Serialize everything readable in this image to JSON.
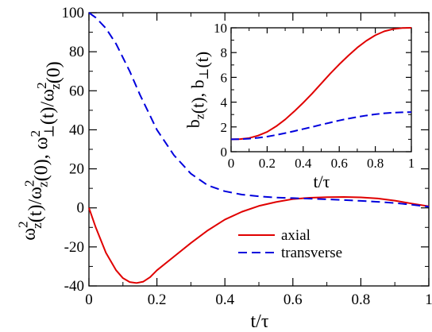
{
  "chart_data": [
    {
      "type": "line",
      "title": "",
      "xlabel": "t/τ",
      "ylabel": "ω_z²(t)/ω_z²(0), ω_⊥²(t)/ω_z²(0)",
      "xlim": [
        0,
        1
      ],
      "ylim": [
        -40,
        100
      ],
      "xticks": [
        0,
        0.2,
        0.4,
        0.6,
        0.8,
        1
      ],
      "yticks": [
        -40,
        -20,
        0,
        20,
        40,
        60,
        80,
        100
      ],
      "xtick_labels": [
        "0",
        "0.2",
        "0.4",
        "0.6",
        "0.8",
        "1"
      ],
      "ytick_labels": [
        "-40",
        "-20",
        "0",
        "20",
        "40",
        "60",
        "80",
        "100"
      ],
      "grid": false,
      "legend_position": "lower-right",
      "series": [
        {
          "name": "axial",
          "color": "#e00000",
          "dash": "solid",
          "x": [
            0,
            0.02,
            0.05,
            0.08,
            0.1,
            0.12,
            0.14,
            0.16,
            0.18,
            0.2,
            0.25,
            0.3,
            0.35,
            0.4,
            0.45,
            0.5,
            0.55,
            0.6,
            0.65,
            0.7,
            0.75,
            0.8,
            0.85,
            0.9,
            0.95,
            1.0
          ],
          "y": [
            0,
            -10,
            -23,
            -32,
            -36,
            -38,
            -38.5,
            -37.8,
            -35.5,
            -32,
            -25,
            -18,
            -11.5,
            -6,
            -2,
            1,
            3,
            4.5,
            5.2,
            5.5,
            5.6,
            5.4,
            4.8,
            3.7,
            2.2,
            0.8
          ]
        },
        {
          "name": "transverse",
          "color": "#0000dd",
          "dash": "dashed",
          "x": [
            0,
            0.02,
            0.05,
            0.08,
            0.1,
            0.12,
            0.15,
            0.2,
            0.25,
            0.3,
            0.35,
            0.4,
            0.45,
            0.5,
            0.55,
            0.6,
            0.65,
            0.7,
            0.75,
            0.8,
            0.85,
            0.9,
            0.95,
            1.0
          ],
          "y": [
            100,
            97.5,
            92,
            84,
            77,
            70,
            58,
            40,
            27,
            17.5,
            11.5,
            8.5,
            6.8,
            5.9,
            5.3,
            5,
            4.7,
            4.4,
            4,
            3.6,
            3.1,
            2.5,
            1.6,
            0.6
          ]
        }
      ]
    },
    {
      "type": "line",
      "title": "",
      "xlabel": "t/τ",
      "ylabel": "b_z(t), b_⊥(t)",
      "xlim": [
        0,
        1
      ],
      "ylim": [
        0,
        10
      ],
      "xticks": [
        0,
        0.2,
        0.4,
        0.6,
        0.8,
        1
      ],
      "yticks": [
        0,
        2,
        4,
        6,
        8,
        10
      ],
      "xtick_labels": [
        "0",
        "0.2",
        "0.4",
        "0.6",
        "0.8",
        "1"
      ],
      "ytick_labels": [
        "0",
        "2",
        "4",
        "6",
        "8",
        "10"
      ],
      "grid": false,
      "legend_position": "none",
      "series": [
        {
          "color": "#e00000",
          "dash": "solid",
          "x": [
            0,
            0.05,
            0.1,
            0.15,
            0.2,
            0.25,
            0.3,
            0.35,
            0.4,
            0.45,
            0.5,
            0.55,
            0.6,
            0.65,
            0.7,
            0.75,
            0.8,
            0.85,
            0.9,
            0.95,
            1.0
          ],
          "y": [
            1,
            1.02,
            1.1,
            1.3,
            1.6,
            2.05,
            2.6,
            3.25,
            3.95,
            4.7,
            5.5,
            6.3,
            7.05,
            7.75,
            8.4,
            8.95,
            9.4,
            9.72,
            9.9,
            9.98,
            10
          ]
        },
        {
          "color": "#0000dd",
          "dash": "dashed",
          "x": [
            0,
            0.05,
            0.1,
            0.15,
            0.2,
            0.25,
            0.3,
            0.35,
            0.4,
            0.45,
            0.5,
            0.55,
            0.6,
            0.65,
            0.7,
            0.75,
            0.8,
            0.85,
            0.9,
            0.95,
            1.0
          ],
          "y": [
            1,
            1.01,
            1.05,
            1.12,
            1.22,
            1.35,
            1.5,
            1.66,
            1.83,
            2.0,
            2.18,
            2.35,
            2.52,
            2.67,
            2.8,
            2.92,
            3.02,
            3.1,
            3.15,
            3.18,
            3.2
          ]
        }
      ]
    }
  ]
}
